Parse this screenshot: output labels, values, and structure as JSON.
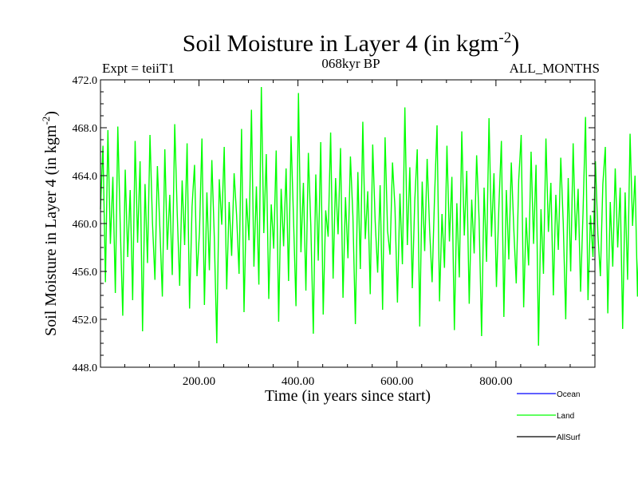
{
  "chart_data": {
    "type": "line",
    "title_main": "Soil Moisture in Layer 4 (in kgm",
    "title_exp": "-2",
    "title_close": ")",
    "subtitle_left": "Expt = teiiT1",
    "subtitle_center": "068kyr BP",
    "subtitle_right": "ALL_MONTHS",
    "xlabel": "Time (in years since start)",
    "ylabel_main": "Soil Moisture in Layer 4 (in kgm",
    "ylabel_exp": "-2",
    "ylabel_close": ")",
    "xlim": [
      1,
      1000
    ],
    "ylim": [
      448.0,
      472.0
    ],
    "xticks": [
      200,
      400,
      600,
      800
    ],
    "xtick_labels": [
      "200.00",
      "400.00",
      "600.00",
      "800.00"
    ],
    "yticks": [
      448,
      452,
      456,
      460,
      464,
      468,
      472
    ],
    "ytick_labels": [
      "448.0",
      "452.0",
      "456.0",
      "460.0",
      "464.0",
      "468.0",
      "472.0"
    ],
    "series": [
      {
        "name": "Ocean",
        "color": "#0000ff",
        "values": []
      },
      {
        "name": "Land",
        "color": "#00ff00",
        "x_start": 1,
        "x_step": 5,
        "values": [
          461.2,
          466.5,
          455.1,
          467.8,
          458.3,
          463.9,
          454.2,
          468.1,
          459.7,
          452.3,
          464.5,
          457.2,
          462.8,
          453.6,
          466.9,
          458.4,
          465.2,
          451.0,
          463.3,
          456.7,
          467.4,
          460.1,
          455.3,
          464.8,
          459.6,
          453.9,
          466.2,
          457.8,
          462.4,
          455.7,
          468.3,
          460.9,
          454.8,
          463.6,
          458.2,
          466.7,
          452.9,
          461.4,
          464.9,
          455.6,
          459.3,
          467.1,
          453.2,
          462.6,
          456.1,
          465.3,
          458.8,
          450.0,
          463.7,
          459.9,
          466.4,
          454.5,
          461.8,
          457.3,
          464.2,
          460.7,
          455.8,
          467.9,
          452.6,
          462.1,
          458.6,
          469.5,
          456.4,
          463.1,
          454.9,
          471.4,
          459.2,
          465.8,
          453.7,
          461.6,
          457.9,
          466.1,
          451.8,
          462.9,
          458.1,
          464.6,
          455.2,
          467.3,
          460.4,
          453.1,
          470.9,
          457.6,
          463.4,
          454.4,
          465.9,
          459.8,
          450.8,
          464.1,
          456.9,
          466.8,
          452.4,
          461.1,
          458.9,
          467.6,
          455.4,
          463.8,
          459.1,
          466.3,
          453.8,
          462.2,
          457.1,
          465.6,
          460.6,
          451.6,
          464.3,
          456.2,
          468.5,
          458.7,
          462.7,
          454.1,
          466.6,
          460.2,
          455.9,
          463.2,
          452.8,
          467.2,
          459.4,
          457.4,
          465.1,
          461.3,
          453.4,
          462.5,
          456.6,
          469.7,
          458.2,
          464.7,
          454.6,
          461.9,
          466.2,
          451.4,
          463.5,
          457.7,
          465.4,
          459.5,
          455.1,
          462.3,
          468.2,
          453.5,
          460.8,
          456.3,
          466.5,
          458.5,
          463.9,
          451.1,
          461.7,
          455.5,
          467.7,
          459.0,
          464.4,
          453.3,
          462.0,
          457.5,
          465.7,
          460.3,
          450.6,
          463.0,
          456.8,
          468.8,
          458.9,
          464.2,
          454.7,
          461.5,
          466.9,
          452.2,
          462.8,
          457.0,
          465.1,
          459.6,
          455.0,
          463.6,
          467.4,
          453.0,
          460.5,
          456.5,
          466.0,
          458.3,
          464.9,
          449.8,
          461.2,
          455.8,
          467.1,
          459.3,
          463.4,
          454.0,
          462.4,
          457.8,
          465.5,
          460.0,
          452.0,
          463.8,
          456.0,
          466.7,
          458.6,
          462.9,
          454.3,
          461.0,
          468.9,
          453.6,
          460.7,
          457.2,
          465.2,
          459.1,
          455.6,
          463.3,
          466.4,
          452.5,
          461.8,
          456.4,
          464.6,
          458.0,
          463.0,
          451.2,
          462.6,
          455.3,
          467.5,
          459.8,
          464.0,
          453.9,
          461.4,
          457.6,
          465.8,
          460.1,
          452.7,
          463.5,
          456.7,
          466.1,
          458.4,
          462.2,
          454.8,
          461.6,
          468.0,
          449.2,
          460.9,
          457.3,
          464.8,
          459.4,
          455.2,
          463.7,
          466.6,
          453.1,
          461.3,
          456.1,
          465.0,
          458.8,
          463.1,
          451.5,
          462.0,
          455.9,
          467.8,
          459.0,
          464.5,
          448.2,
          461.7,
          457.4,
          465.3,
          460.4,
          452.1,
          463.2,
          456.6,
          468.6,
          458.1,
          462.7,
          454.2,
          461.9,
          466.3,
          453.4,
          460.6,
          457.9,
          464.4,
          459.7,
          455.4,
          463.9,
          467.2,
          451.9,
          461.1,
          456.2,
          465.6,
          458.7,
          462.5,
          450.6,
          462.1,
          455.7,
          466.0,
          459.5,
          463.6,
          453.7,
          461.5,
          457.1,
          464.1,
          460.2,
          452.9
        ]
      },
      {
        "name": "AllSurf",
        "color": "#000000",
        "values": []
      }
    ],
    "legend_position": "bottom-right",
    "grid": false
  }
}
